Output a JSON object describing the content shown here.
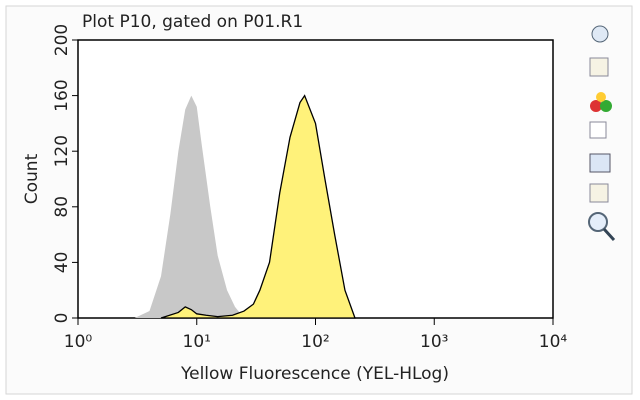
{
  "chart_data": {
    "type": "area",
    "title": "Plot P10, gated on P01.R1",
    "x_label": "Yellow Fluorescence (YEL-HLog)",
    "y_label": "Count",
    "log_x": true,
    "xlim": [
      1,
      10000
    ],
    "ylim": [
      0,
      200
    ],
    "xticks": [
      {
        "value": 1,
        "label": "10⁰"
      },
      {
        "value": 10,
        "label": "10¹"
      },
      {
        "value": 100,
        "label": "10²"
      },
      {
        "value": 1000,
        "label": "10³"
      },
      {
        "value": 10000,
        "label": "10⁴"
      }
    ],
    "yticks": [
      0,
      40,
      80,
      120,
      160,
      200
    ],
    "series": [
      {
        "color": "#c8c8c8",
        "x": [
          3,
          4,
          5,
          6,
          7,
          8,
          9,
          10,
          11,
          13,
          15,
          18,
          21,
          25
        ],
        "values": [
          0,
          5,
          30,
          75,
          120,
          150,
          160,
          152,
          125,
          80,
          45,
          20,
          8,
          0
        ]
      },
      {
        "color": "#fff27a",
        "x": [
          5,
          7,
          8,
          9,
          10,
          12,
          15,
          20,
          25,
          30,
          34,
          41,
          50,
          61,
          74,
          81,
          100,
          120,
          145,
          177,
          215
        ],
        "values": [
          0,
          4,
          8,
          6,
          3,
          2,
          1,
          2,
          5,
          10,
          20,
          40,
          90,
          130,
          155,
          160,
          140,
          100,
          60,
          20,
          0
        ]
      }
    ]
  }
}
